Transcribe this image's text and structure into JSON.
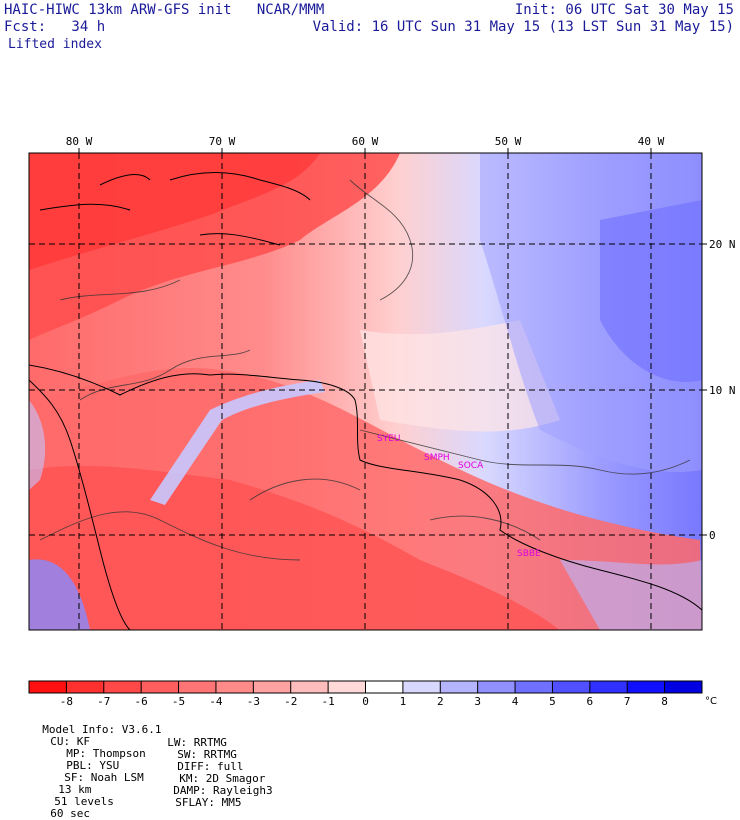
{
  "header": {
    "line1_left": "HAIC-HIWC 13km ARW-GFS init   NCAR/MMM",
    "line1_right": "Init: 06 UTC Sat 30 May 15",
    "line2_left": "Fcst:   34 h",
    "line2_right": "Valid: 16 UTC Sun 31 May 15 (13 LST Sun 31 May 15)",
    "field": "Lifted index"
  },
  "map": {
    "lon_labels": [
      "80 W",
      "70 W",
      "60 W",
      "50 W",
      "40 W"
    ],
    "lat_labels": [
      "20 N",
      "10 N",
      "0"
    ],
    "stations": [
      "SYEU",
      "SMPH",
      "SOCA",
      "SBBE"
    ],
    "station_color": "#e000e0"
  },
  "colorbar": {
    "ticks": [
      "-8",
      "-7",
      "-6",
      "-5",
      "-4",
      "-3",
      "-2",
      "-1",
      "0",
      "1",
      "2",
      "3",
      "4",
      "5",
      "6",
      "7",
      "8"
    ],
    "unit": "°C",
    "colors": [
      "#ff1010",
      "#ff3030",
      "#ff4848",
      "#ff5e5e",
      "#ff7474",
      "#ff8a8a",
      "#ffa2a2",
      "#ffbcbc",
      "#ffd8d8",
      "#ffffff",
      "#d8d8ff",
      "#b4b4ff",
      "#9090ff",
      "#7070ff",
      "#5050ff",
      "#3030ff",
      "#1010ff",
      "#0000e0"
    ]
  },
  "footer": {
    "line1": [
      "Model Info: V3.6.1",
      "CU: KF",
      "MP: Thompson",
      "PBL: YSU",
      "SF: Noah LSM",
      "13 km",
      "51 levels",
      "60 sec"
    ],
    "line2": [
      "LW: RRTMG",
      "SW: RRTMG",
      "DIFF: full",
      "KM: 2D Smagor",
      "DAMP: Rayleigh3",
      "SFLAY: MM5"
    ]
  }
}
